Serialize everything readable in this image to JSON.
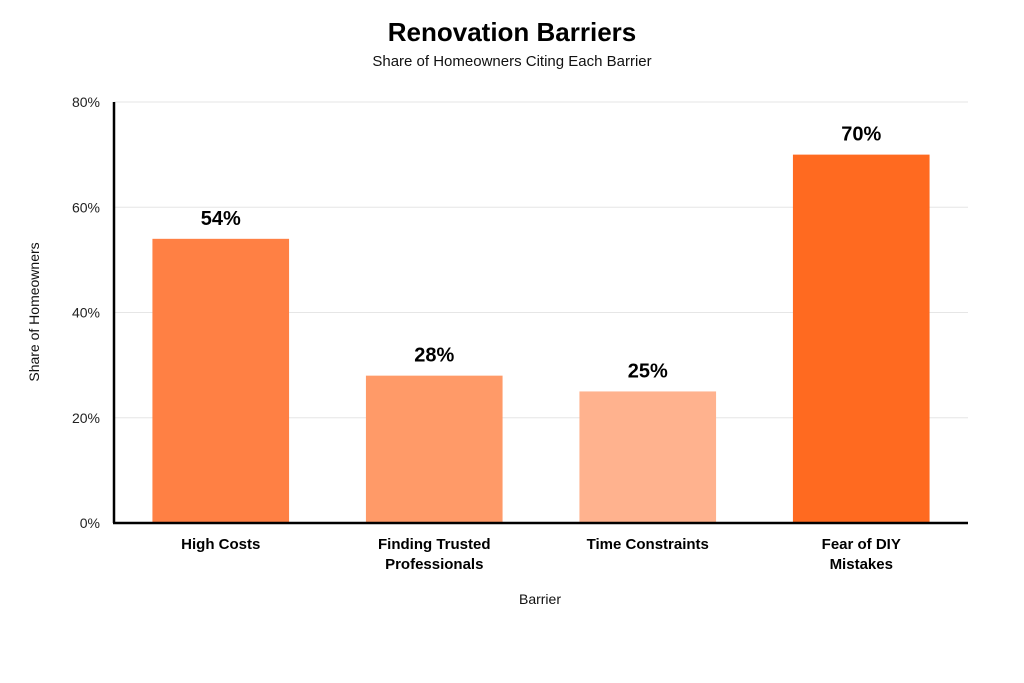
{
  "chart_data": {
    "type": "bar",
    "title": "Renovation Barriers",
    "subtitle": "Share of Homeowners Citing Each Barrier",
    "xlabel": "Barrier",
    "ylabel": "Share of Homeowners",
    "categories": [
      "High Costs",
      "Finding Trusted Professionals",
      "Time Constraints",
      "Fear of DIY Mistakes"
    ],
    "category_lines": [
      [
        "High Costs"
      ],
      [
        "Finding Trusted",
        "Professionals"
      ],
      [
        "Time Constraints"
      ],
      [
        "Fear of DIY",
        "Mistakes"
      ]
    ],
    "values": [
      54,
      28,
      25,
      70
    ],
    "data_labels": [
      "54%",
      "28%",
      "25%",
      "70%"
    ],
    "colors": [
      "#ff8044",
      "#ff9a68",
      "#ffb28e",
      "#ff6a20"
    ],
    "ylim": [
      0,
      80
    ],
    "yticks": [
      0,
      20,
      40,
      60,
      80
    ],
    "ytick_labels": [
      "0%",
      "20%",
      "40%",
      "60%",
      "80%"
    ],
    "grid": true,
    "legend": "none"
  }
}
